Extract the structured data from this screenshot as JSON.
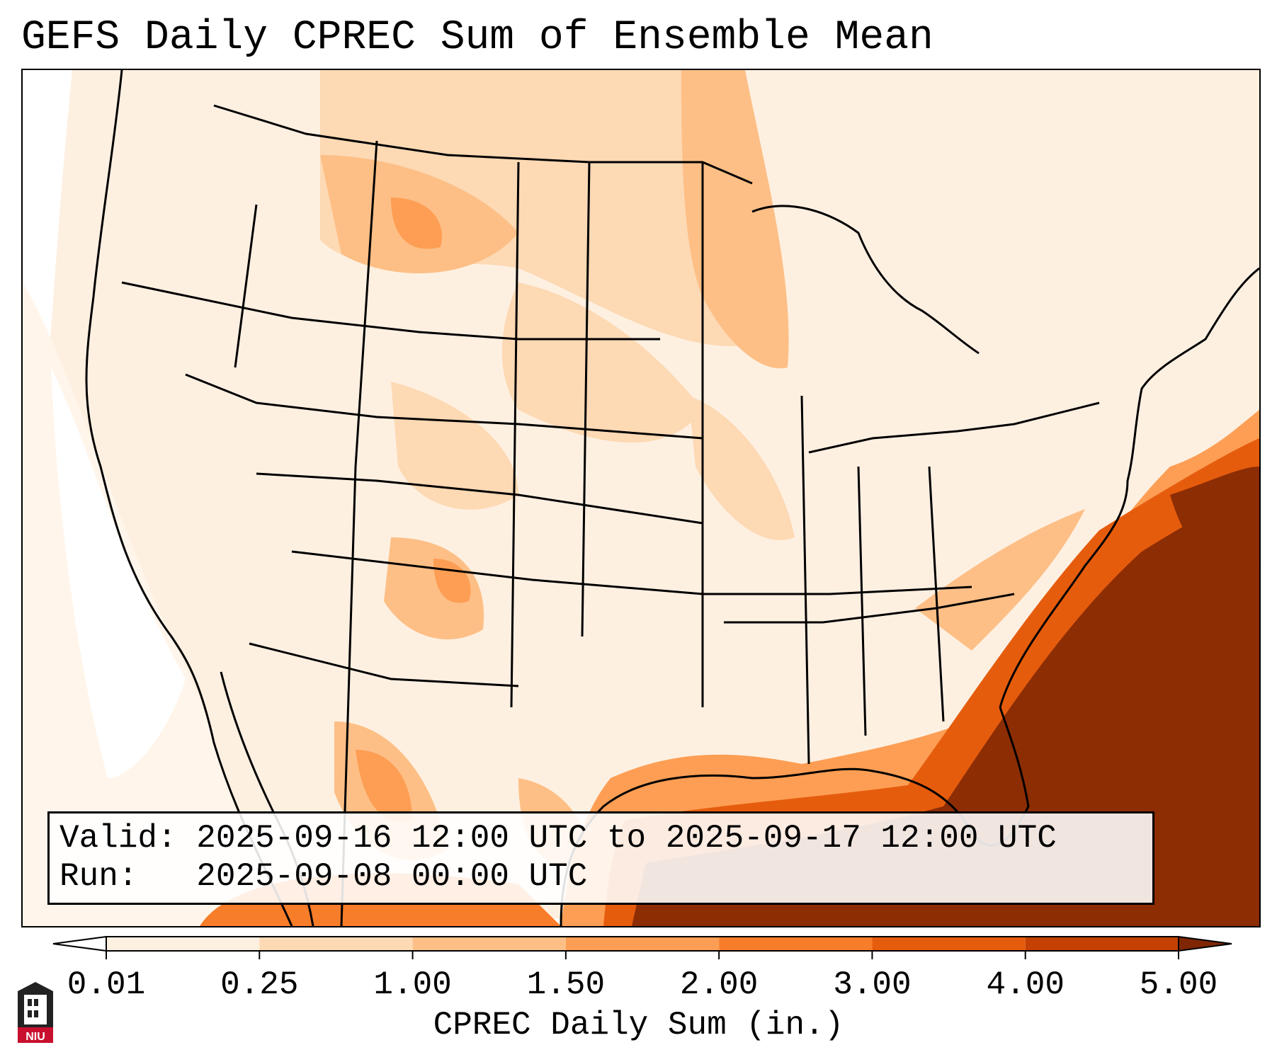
{
  "title": "GEFS Daily CPREC Sum of Ensemble Mean",
  "valid": {
    "label": "Valid:",
    "value": "2025-09-16 12:00 UTC to 2025-09-17 12:00 UTC"
  },
  "run": {
    "label": "Run:",
    "value": "2025-09-08 00:00 UTC"
  },
  "colorbar": {
    "label": "CPREC Daily Sum (in.)",
    "ticks": [
      "0.01",
      "0.25",
      "1.00",
      "1.50",
      "2.00",
      "3.00",
      "4.00",
      "5.00"
    ],
    "colors": [
      "#fef0e1",
      "#fdd9b4",
      "#fdbf86",
      "#fd9e54",
      "#f87d2a",
      "#e65c0d",
      "#c44103",
      "#8c2d04"
    ],
    "under_color": "#ffffff",
    "over_color": "#7f2704"
  },
  "logo": {
    "text": "NIU",
    "accent": "#c8102e"
  },
  "map": {
    "background": "#fff5eb",
    "heavy_color": "#8c2d04",
    "ocean_light": "#ffffff"
  }
}
